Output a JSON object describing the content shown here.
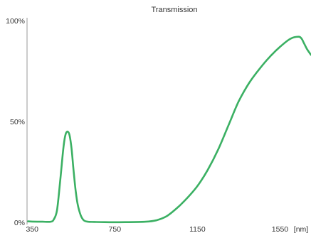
{
  "chart_data": {
    "type": "line",
    "title": "Transmission",
    "x_unit_label": "[nm]",
    "xlim": [
      325,
      1700
    ],
    "ylim": [
      0,
      100
    ],
    "x_ticks": [
      {
        "value": 350,
        "label": "350"
      },
      {
        "value": 750,
        "label": "750"
      },
      {
        "value": 1150,
        "label": "1150"
      },
      {
        "value": 1550,
        "label": "1550"
      }
    ],
    "y_ticks": [
      {
        "value": 0,
        "label": "0%"
      },
      {
        "value": 50,
        "label": "50%"
      },
      {
        "value": 100,
        "label": "100%"
      }
    ],
    "grid": false,
    "legend": "none",
    "line_color": "#3bb063",
    "series": [
      {
        "x": [
          330,
          350,
          400,
          440,
          455,
          470,
          485,
          500,
          510,
          520,
          530,
          540,
          550,
          560,
          570,
          585,
          600,
          620,
          650,
          700,
          800,
          900,
          950,
          1000,
          1050,
          1100,
          1150,
          1200,
          1250,
          1300,
          1350,
          1400,
          1450,
          1500,
          1550,
          1600,
          1640,
          1655,
          1665,
          1680,
          1700
        ],
        "y": [
          0.5,
          0.4,
          0.3,
          0.3,
          1.5,
          6,
          20,
          36,
          43,
          45,
          43.5,
          37,
          26,
          16,
          9,
          3.5,
          1,
          0.3,
          0.2,
          0.1,
          0.1,
          0.3,
          1,
          3,
          7,
          12,
          18,
          26,
          36,
          48,
          60,
          69,
          76,
          82,
          87,
          91,
          92,
          91,
          89,
          86,
          83
        ]
      }
    ]
  }
}
